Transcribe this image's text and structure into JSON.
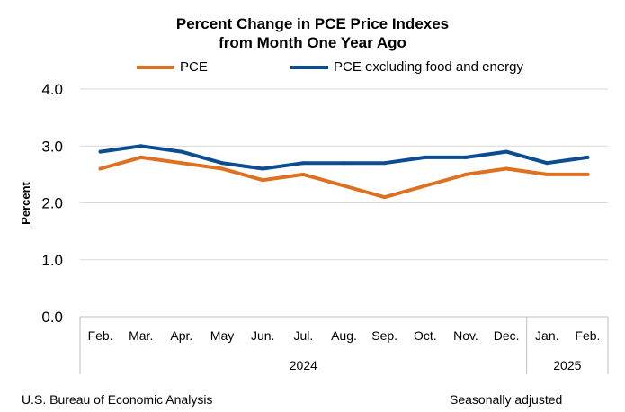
{
  "chart_data": {
    "type": "line",
    "title": [
      "Percent Change in PCE Price Indexes",
      "from Month One Year Ago"
    ],
    "ylabel": "Percent",
    "xlabel": "",
    "ylim": [
      0,
      4.0
    ],
    "yticks": [
      "0.0",
      "1.0",
      "2.0",
      "3.0",
      "4.0"
    ],
    "categories": [
      "Feb.",
      "Mar.",
      "Apr.",
      "May",
      "Jun.",
      "Jul.",
      "Aug.",
      "Sep.",
      "Oct.",
      "Nov.",
      "Dec.",
      "Jan.",
      "Feb."
    ],
    "year_groups": [
      {
        "label": "2024",
        "start": 0,
        "end": 10
      },
      {
        "label": "2025",
        "start": 11,
        "end": 12
      }
    ],
    "grid": "horizontal",
    "legend_position": "top",
    "series": [
      {
        "name": "PCE",
        "color": "#e07021",
        "values": [
          2.6,
          2.8,
          2.7,
          2.6,
          2.4,
          2.5,
          2.3,
          2.1,
          2.3,
          2.5,
          2.6,
          2.5,
          2.5
        ]
      },
      {
        "name": "PCE excluding food and energy",
        "color": "#0b4c93",
        "values": [
          2.9,
          3.0,
          2.9,
          2.7,
          2.6,
          2.7,
          2.7,
          2.7,
          2.8,
          2.8,
          2.9,
          2.7,
          2.8
        ]
      }
    ]
  },
  "footer": {
    "source": "U.S. Bureau of Economic Analysis",
    "note": "Seasonally adjusted"
  }
}
